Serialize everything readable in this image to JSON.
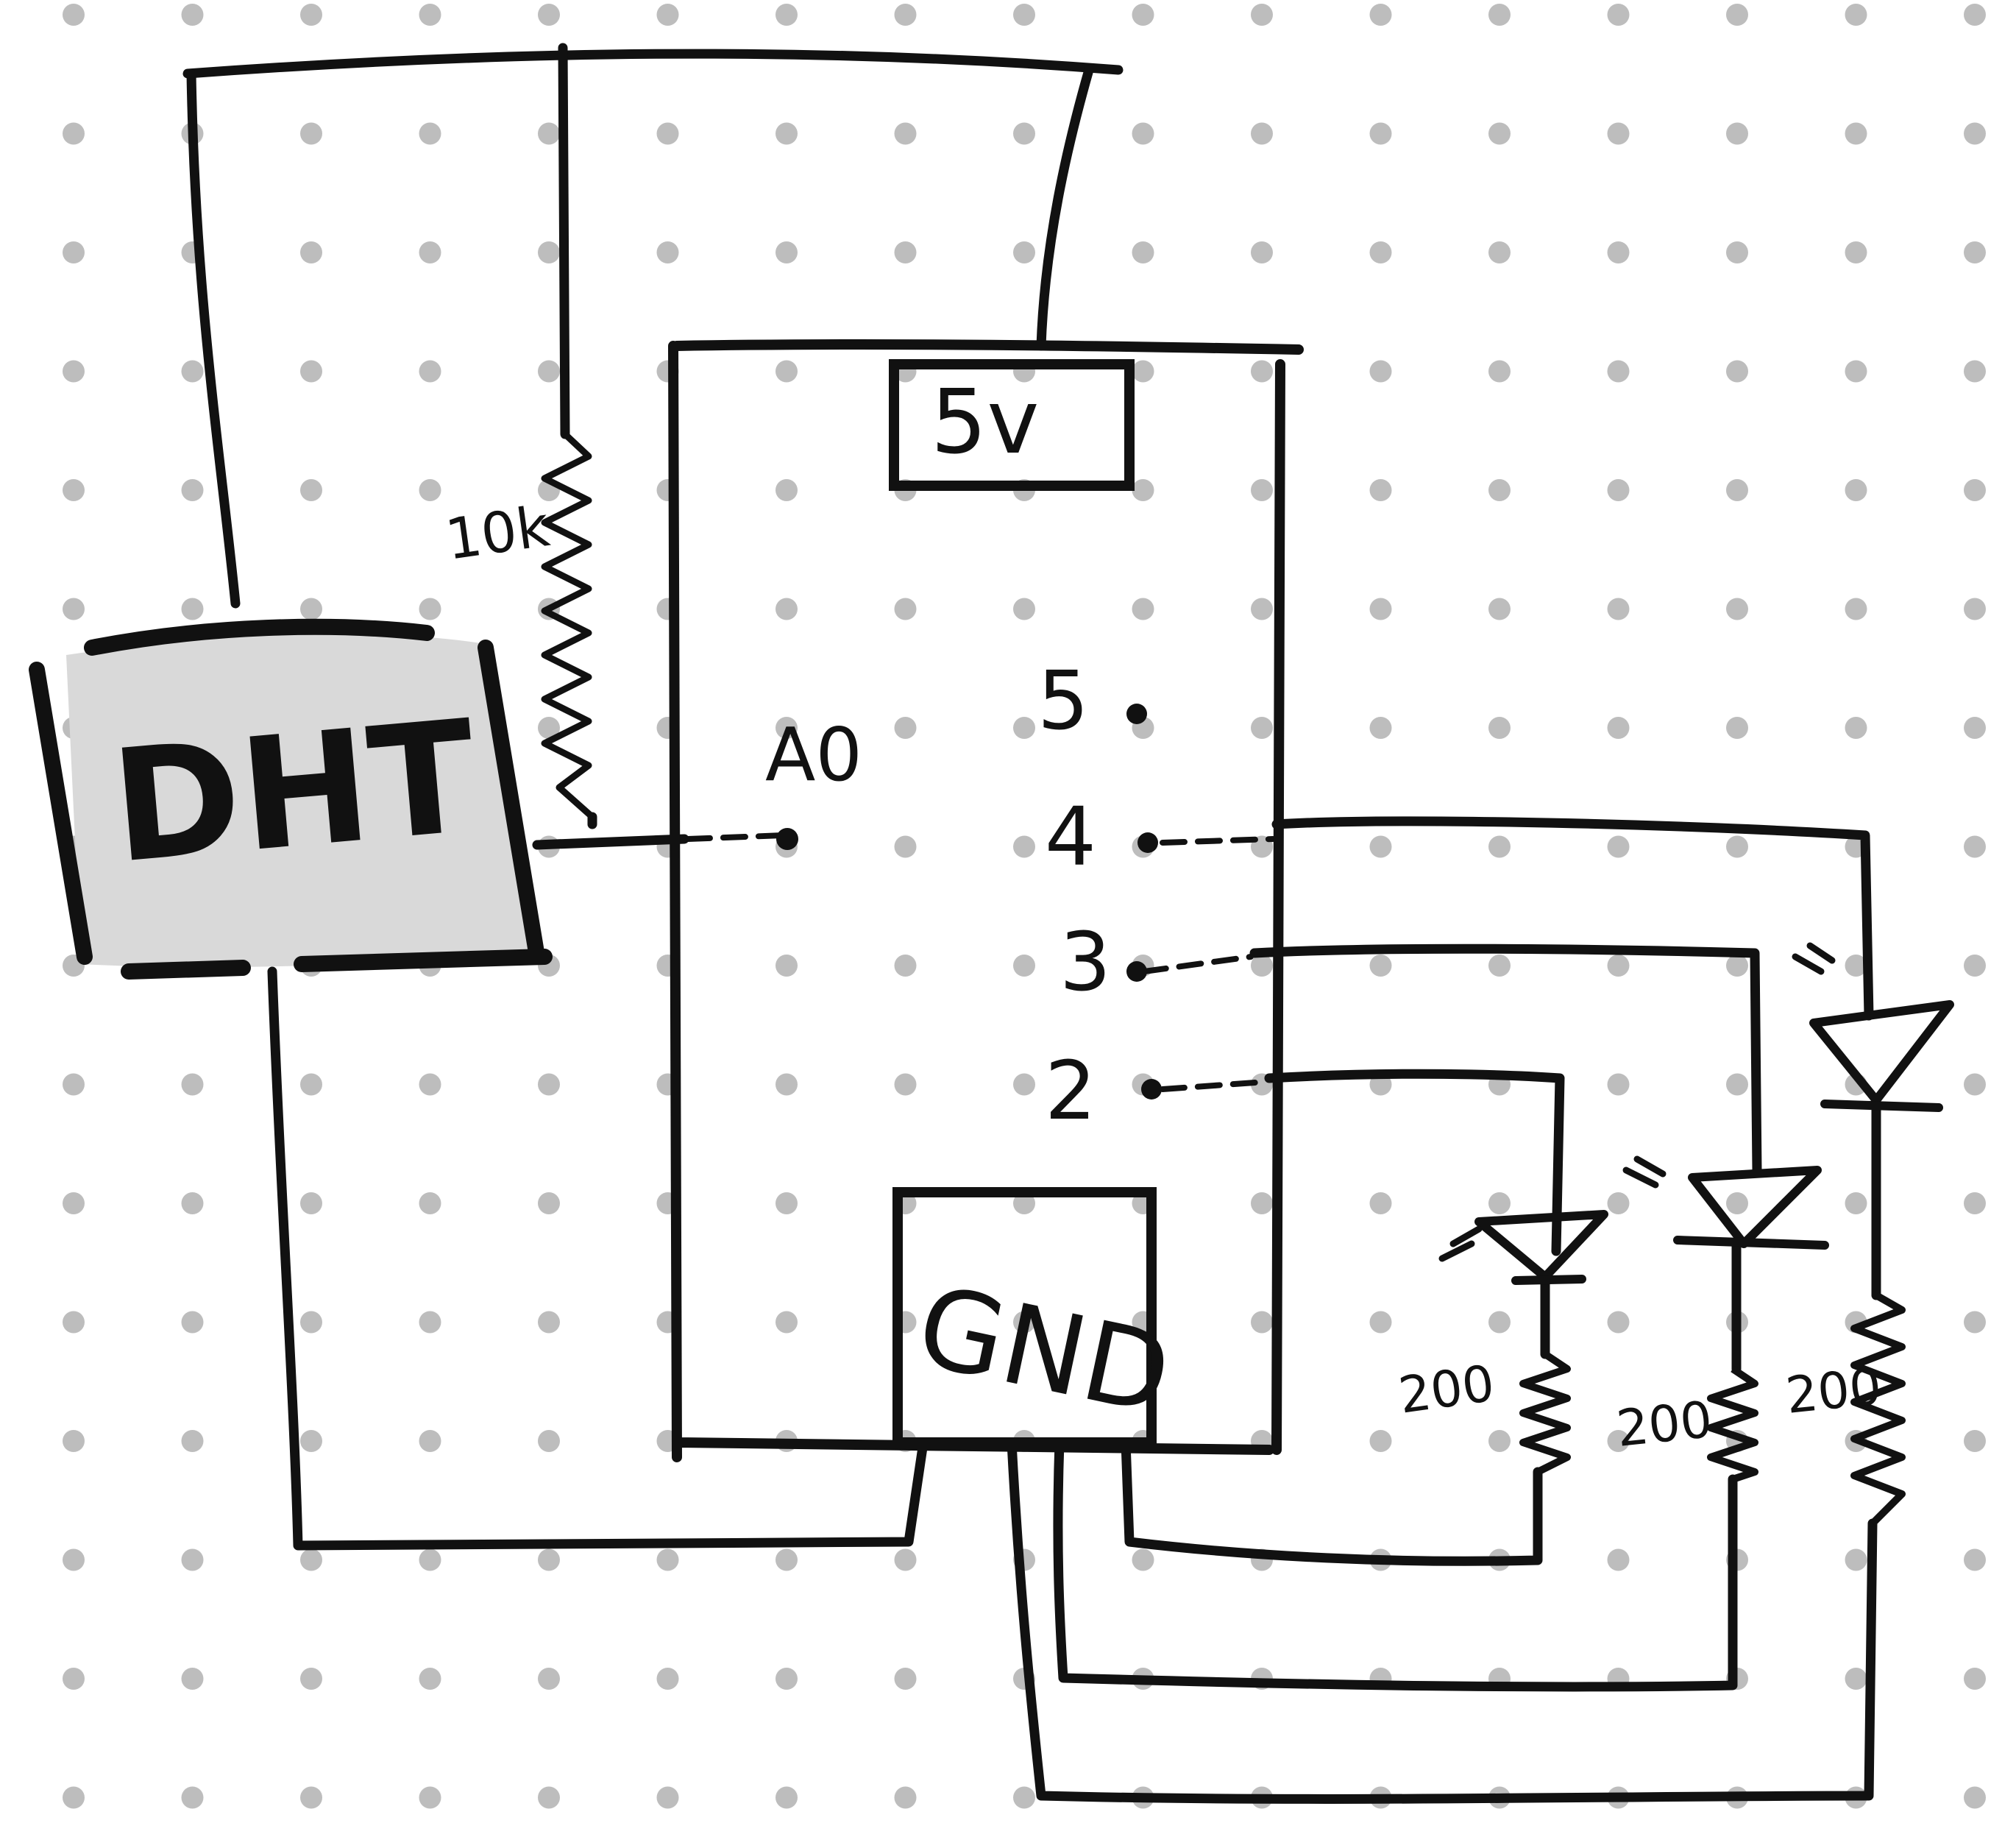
{
  "colors": {
    "ink": "#111111",
    "dot": "#bdbdbd",
    "background": "#ffffff",
    "sensor_fill": "#d9d9d9"
  },
  "sensor": {
    "label": "DHT"
  },
  "pullup_resistor": {
    "label": "10k"
  },
  "arduino": {
    "power_pin": "5v",
    "ground_pin": "GND",
    "analog_pin": "A0",
    "digital_pins": [
      "5",
      "4",
      "3",
      "2"
    ]
  },
  "led_resistors": [
    "200",
    "200",
    "200"
  ]
}
